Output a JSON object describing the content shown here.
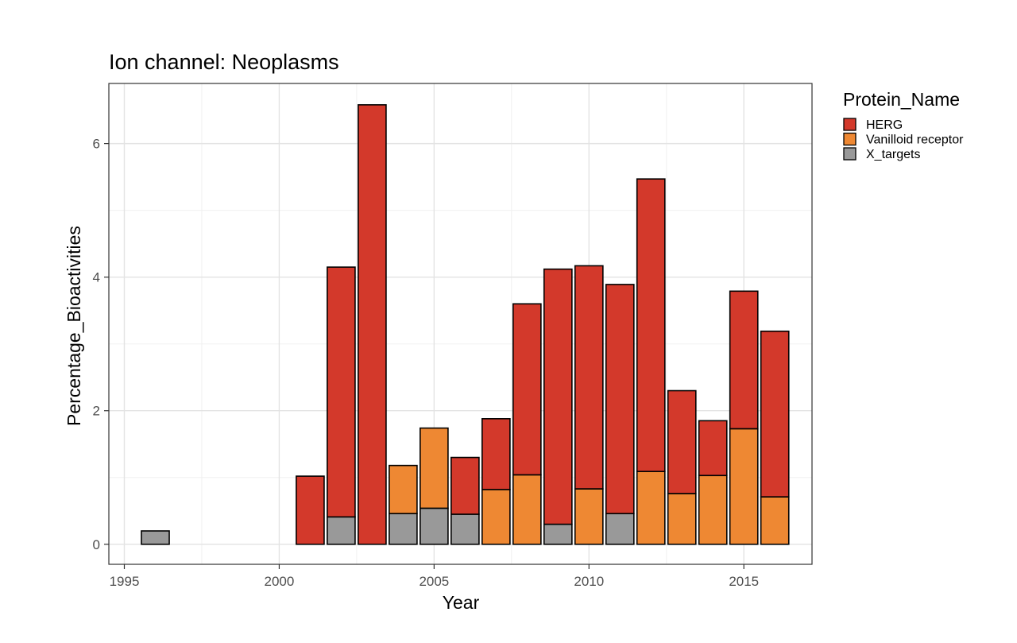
{
  "chart_data": {
    "type": "bar",
    "stacked": true,
    "title": "Ion channel: Neoplasms",
    "xlabel": "Year",
    "ylabel": "Percentage_Bioactivities",
    "xlim": [
      1994.5,
      2017.2
    ],
    "ylim": [
      -0.3,
      6.9
    ],
    "x_ticks": [
      1995,
      2000,
      2005,
      2010,
      2015
    ],
    "y_ticks": [
      0,
      2,
      4,
      6
    ],
    "grid": true,
    "legend": {
      "title": "Protein_Name",
      "position": "right"
    },
    "series": [
      {
        "name": "X_targets",
        "color": "#999999",
        "points": [
          [
            1996,
            0.2
          ],
          [
            2002,
            0.41
          ],
          [
            2004,
            0.46
          ],
          [
            2005,
            0.54
          ],
          [
            2006,
            0.45
          ],
          [
            2009,
            0.3
          ],
          [
            2011,
            0.46
          ]
        ]
      },
      {
        "name": "Vanilloid receptor",
        "color": "#EE8833",
        "points": [
          [
            2004,
            0.72
          ],
          [
            2005,
            1.2
          ],
          [
            2007,
            0.82
          ],
          [
            2008,
            1.04
          ],
          [
            2010,
            0.83
          ],
          [
            2012,
            1.09
          ],
          [
            2013,
            0.76
          ],
          [
            2014,
            1.03
          ],
          [
            2015,
            1.73
          ],
          [
            2016,
            0.71
          ]
        ]
      },
      {
        "name": "HERG",
        "color": "#D3392B",
        "points": [
          [
            2001,
            1.02
          ],
          [
            2002,
            3.74
          ],
          [
            2003,
            6.58
          ],
          [
            2006,
            0.85
          ],
          [
            2007,
            1.06
          ],
          [
            2008,
            2.56
          ],
          [
            2009,
            3.82
          ],
          [
            2010,
            3.34
          ],
          [
            2011,
            3.43
          ],
          [
            2012,
            4.38
          ],
          [
            2013,
            1.54
          ],
          [
            2014,
            0.82
          ],
          [
            2015,
            2.06
          ],
          [
            2016,
            2.48
          ]
        ]
      }
    ],
    "legend_order": [
      "HERG",
      "Vanilloid receptor",
      "X_targets"
    ]
  }
}
